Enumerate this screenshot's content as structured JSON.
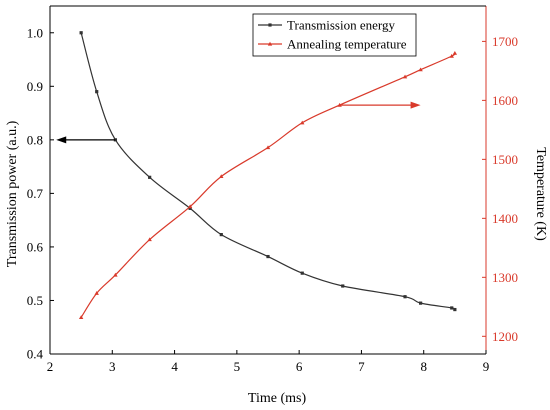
{
  "chart_data": {
    "type": "line",
    "title": "",
    "xlabel": "Time (ms)",
    "ylabel_left": "Transmission power (a.u.)",
    "ylabel_right": "Temperature (K)",
    "xlim": [
      2,
      9
    ],
    "ylim_left": [
      0.4,
      1.05
    ],
    "ylim_right": [
      1170,
      1760
    ],
    "x_ticks": [
      2,
      3,
      4,
      5,
      6,
      7,
      8,
      9
    ],
    "y_left_ticks": [
      "0.4",
      "0.5",
      "0.6",
      "0.7",
      "0.8",
      "0.9",
      "1.0"
    ],
    "y_right_ticks": [
      1200,
      1300,
      1400,
      1500,
      1600,
      1700
    ],
    "grid": false,
    "legend_position": "top-right",
    "series": [
      {
        "name": "Transmission energy",
        "axis": "left",
        "color": "#333333",
        "marker": "square",
        "x": [
          2.5,
          2.75,
          3.05,
          3.6,
          4.25,
          4.75,
          5.5,
          6.05,
          6.7,
          7.7,
          7.95,
          8.45,
          8.5
        ],
        "y": [
          1.0,
          0.89,
          0.8,
          0.73,
          0.672,
          0.623,
          0.582,
          0.551,
          0.527,
          0.507,
          0.495,
          0.486,
          0.483
        ]
      },
      {
        "name": "Annealing temperature",
        "axis": "right",
        "color": "#d93a2b",
        "marker": "triangle",
        "x": [
          2.5,
          2.75,
          3.05,
          3.6,
          4.25,
          4.75,
          5.5,
          6.05,
          6.65,
          7.7,
          7.95,
          8.45,
          8.5
        ],
        "y": [
          1232,
          1273,
          1304,
          1364,
          1420,
          1471,
          1520,
          1562,
          1592,
          1640,
          1652,
          1675,
          1680
        ]
      }
    ],
    "annotations": [
      {
        "type": "arrow",
        "direction": "left",
        "axis": "left",
        "y": 0.8,
        "x_from": 3.05,
        "x_to": 2.1
      },
      {
        "type": "arrow",
        "direction": "right",
        "axis": "right",
        "y": 1592,
        "x_from": 6.65,
        "x_to": 7.95
      }
    ]
  }
}
